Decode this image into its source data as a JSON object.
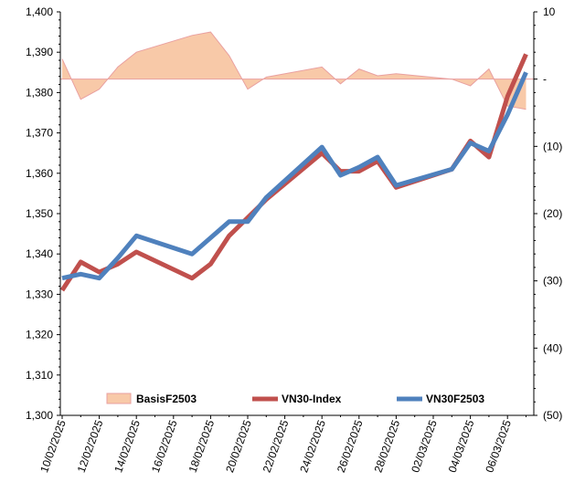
{
  "chart_data": {
    "type": "line",
    "x_tick_labels": [
      "10/02/2025",
      "12/02/2025",
      "14/02/2025",
      "16/02/2025",
      "18/02/2025",
      "20/02/2025",
      "22/02/2025",
      "24/02/2025",
      "26/02/2025",
      "28/02/2025",
      "02/03/2025",
      "04/03/2025",
      "06/03/2025"
    ],
    "left_axis": {
      "ylim": [
        1300,
        1400
      ],
      "ticks": [
        "1,300",
        "1,310",
        "1,320",
        "1,330",
        "1,340",
        "1,350",
        "1,360",
        "1,370",
        "1,380",
        "1,390",
        "1,400"
      ]
    },
    "right_axis": {
      "ylim": [
        -50,
        10
      ],
      "ticks": [
        "(50)",
        "(40)",
        "(30)",
        "(20)",
        "(10)",
        "-",
        "10"
      ]
    },
    "series": [
      {
        "name": "BasisF2503",
        "kind": "area",
        "axis": "right",
        "color": "#f8c9a8",
        "edge_color": "#e9a0a0",
        "points": [
          [
            "10/02/2025",
            3
          ],
          [
            "11/02/2025",
            -3
          ],
          [
            "12/02/2025",
            -1.5
          ],
          [
            "13/02/2025",
            1.8
          ],
          [
            "14/02/2025",
            4
          ],
          [
            "17/02/2025",
            6.5
          ],
          [
            "18/02/2025",
            7
          ],
          [
            "19/02/2025",
            3.5
          ],
          [
            "20/02/2025",
            -1.5
          ],
          [
            "21/02/2025",
            0.3
          ],
          [
            "24/02/2025",
            1.8
          ],
          [
            "25/02/2025",
            -0.7
          ],
          [
            "26/02/2025",
            1.5
          ],
          [
            "27/02/2025",
            0.5
          ],
          [
            "28/02/2025",
            0.8
          ],
          [
            "03/03/2025",
            0
          ],
          [
            "04/03/2025",
            -1
          ],
          [
            "05/03/2025",
            1.5
          ],
          [
            "06/03/2025",
            -4
          ],
          [
            "07/03/2025",
            -4.5
          ]
        ]
      },
      {
        "name": "VN30-Index",
        "kind": "line",
        "axis": "left",
        "color": "#c0504d",
        "points": [
          [
            "10/02/2025",
            1331
          ],
          [
            "11/02/2025",
            1338
          ],
          [
            "12/02/2025",
            1335.5
          ],
          [
            "13/02/2025",
            1337.5
          ],
          [
            "14/02/2025",
            1340.5
          ],
          [
            "17/02/2025",
            1334
          ],
          [
            "18/02/2025",
            1337.5
          ],
          [
            "19/02/2025",
            1344.5
          ],
          [
            "20/02/2025",
            1349
          ],
          [
            "21/02/2025",
            1353.5
          ],
          [
            "24/02/2025",
            1365
          ],
          [
            "25/02/2025",
            1360.5
          ],
          [
            "26/02/2025",
            1360.5
          ],
          [
            "27/02/2025",
            1363
          ],
          [
            "28/02/2025",
            1356.5
          ],
          [
            "03/03/2025",
            1361
          ],
          [
            "04/03/2025",
            1368
          ],
          [
            "05/03/2025",
            1364
          ],
          [
            "06/03/2025",
            1379
          ],
          [
            "07/03/2025",
            1389.5
          ]
        ]
      },
      {
        "name": "VN30F2503",
        "kind": "line",
        "axis": "left",
        "color": "#4f81bd",
        "points": [
          [
            "10/02/2025",
            1334
          ],
          [
            "11/02/2025",
            1335
          ],
          [
            "12/02/2025",
            1334
          ],
          [
            "13/02/2025",
            1339
          ],
          [
            "14/02/2025",
            1344.5
          ],
          [
            "17/02/2025",
            1340
          ],
          [
            "18/02/2025",
            1344
          ],
          [
            "19/02/2025",
            1348
          ],
          [
            "20/02/2025",
            1348
          ],
          [
            "21/02/2025",
            1354
          ],
          [
            "24/02/2025",
            1366.5
          ],
          [
            "25/02/2025",
            1359.5
          ],
          [
            "26/02/2025",
            1361.5
          ],
          [
            "27/02/2025",
            1364
          ],
          [
            "28/02/2025",
            1357
          ],
          [
            "03/03/2025",
            1361
          ],
          [
            "04/03/2025",
            1367.5
          ],
          [
            "05/03/2025",
            1365.5
          ],
          [
            "06/03/2025",
            1374.5
          ],
          [
            "07/03/2025",
            1385
          ]
        ]
      }
    ],
    "legend_placement": "bottom",
    "grid": false
  }
}
